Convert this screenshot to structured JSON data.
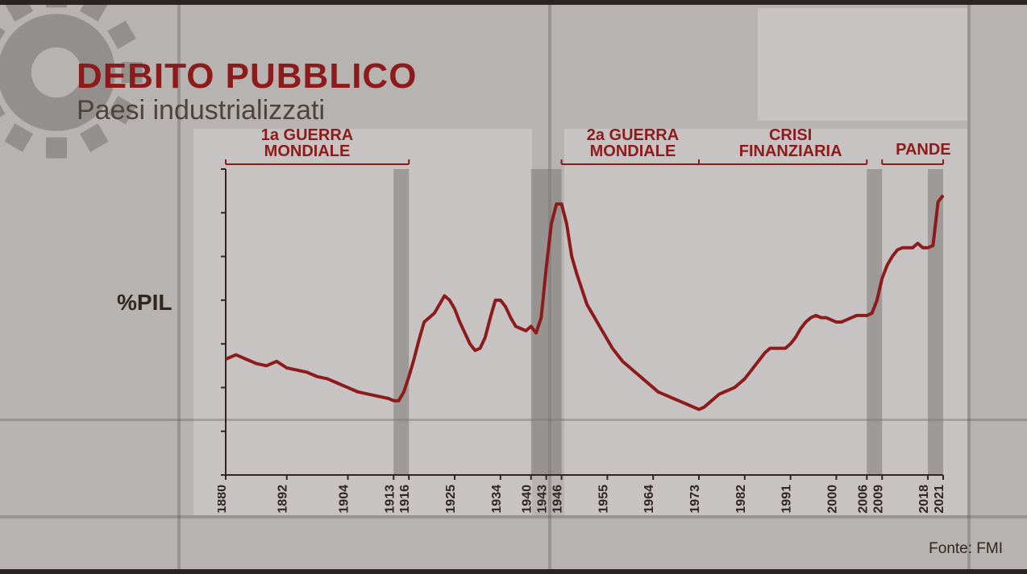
{
  "header": {
    "title": "DEBITO PUBBLICO",
    "subtitle": "Paesi industrializzati"
  },
  "footer": {
    "source": "Fonte: FMI"
  },
  "chart": {
    "type": "line",
    "ylabel": "%PIL",
    "plot_background": "rgba(255,255,255,0.0)",
    "line_color": "#8e1b1b",
    "line_width": 4,
    "axis_color": "#2d2623",
    "axis_width": 2,
    "tick_font_size": 16,
    "tick_font_weight": 600,
    "tick_color": "#2d2623",
    "grid_color": "#9d9793",
    "grid_width": 1,
    "annotation_color": "#8e1b1b",
    "annotation_font_size": 20,
    "annotation_font_weight": 800,
    "band_color": "#7d7976",
    "band_opacity": 0.55,
    "xlim": [
      1880,
      2021
    ],
    "ylim": [
      0,
      140
    ],
    "ytick_step": 20,
    "xtick_years": [
      1880,
      1892,
      1904,
      1913,
      1916,
      1925,
      1934,
      1940,
      1943,
      1946,
      1955,
      1964,
      1973,
      1982,
      1991,
      2000,
      2006,
      2009,
      2018,
      2021
    ],
    "series": [
      {
        "x": 1880,
        "y": 53
      },
      {
        "x": 1882,
        "y": 55
      },
      {
        "x": 1884,
        "y": 53
      },
      {
        "x": 1886,
        "y": 51
      },
      {
        "x": 1888,
        "y": 50
      },
      {
        "x": 1890,
        "y": 52
      },
      {
        "x": 1892,
        "y": 49
      },
      {
        "x": 1894,
        "y": 48
      },
      {
        "x": 1896,
        "y": 47
      },
      {
        "x": 1898,
        "y": 45
      },
      {
        "x": 1900,
        "y": 44
      },
      {
        "x": 1902,
        "y": 42
      },
      {
        "x": 1904,
        "y": 40
      },
      {
        "x": 1906,
        "y": 38
      },
      {
        "x": 1908,
        "y": 37
      },
      {
        "x": 1910,
        "y": 36
      },
      {
        "x": 1912,
        "y": 35
      },
      {
        "x": 1913,
        "y": 34
      },
      {
        "x": 1914,
        "y": 34
      },
      {
        "x": 1915,
        "y": 38
      },
      {
        "x": 1916,
        "y": 45
      },
      {
        "x": 1917,
        "y": 53
      },
      {
        "x": 1918,
        "y": 62
      },
      {
        "x": 1919,
        "y": 70
      },
      {
        "x": 1920,
        "y": 72
      },
      {
        "x": 1921,
        "y": 74
      },
      {
        "x": 1922,
        "y": 78
      },
      {
        "x": 1923,
        "y": 82
      },
      {
        "x": 1924,
        "y": 80
      },
      {
        "x": 1925,
        "y": 76
      },
      {
        "x": 1926,
        "y": 70
      },
      {
        "x": 1927,
        "y": 65
      },
      {
        "x": 1928,
        "y": 60
      },
      {
        "x": 1929,
        "y": 57
      },
      {
        "x": 1930,
        "y": 58
      },
      {
        "x": 1931,
        "y": 63
      },
      {
        "x": 1932,
        "y": 72
      },
      {
        "x": 1933,
        "y": 80
      },
      {
        "x": 1934,
        "y": 80
      },
      {
        "x": 1935,
        "y": 77
      },
      {
        "x": 1936,
        "y": 72
      },
      {
        "x": 1937,
        "y": 68
      },
      {
        "x": 1938,
        "y": 67
      },
      {
        "x": 1939,
        "y": 66
      },
      {
        "x": 1940,
        "y": 68
      },
      {
        "x": 1941,
        "y": 65
      },
      {
        "x": 1942,
        "y": 72
      },
      {
        "x": 1943,
        "y": 95
      },
      {
        "x": 1944,
        "y": 115
      },
      {
        "x": 1945,
        "y": 124
      },
      {
        "x": 1946,
        "y": 124
      },
      {
        "x": 1947,
        "y": 115
      },
      {
        "x": 1948,
        "y": 100
      },
      {
        "x": 1949,
        "y": 92
      },
      {
        "x": 1950,
        "y": 85
      },
      {
        "x": 1951,
        "y": 78
      },
      {
        "x": 1952,
        "y": 74
      },
      {
        "x": 1953,
        "y": 70
      },
      {
        "x": 1954,
        "y": 66
      },
      {
        "x": 1955,
        "y": 62
      },
      {
        "x": 1956,
        "y": 58
      },
      {
        "x": 1957,
        "y": 55
      },
      {
        "x": 1958,
        "y": 52
      },
      {
        "x": 1959,
        "y": 50
      },
      {
        "x": 1960,
        "y": 48
      },
      {
        "x": 1961,
        "y": 46
      },
      {
        "x": 1962,
        "y": 44
      },
      {
        "x": 1963,
        "y": 42
      },
      {
        "x": 1964,
        "y": 40
      },
      {
        "x": 1965,
        "y": 38
      },
      {
        "x": 1966,
        "y": 37
      },
      {
        "x": 1967,
        "y": 36
      },
      {
        "x": 1968,
        "y": 35
      },
      {
        "x": 1969,
        "y": 34
      },
      {
        "x": 1970,
        "y": 33
      },
      {
        "x": 1971,
        "y": 32
      },
      {
        "x": 1972,
        "y": 31
      },
      {
        "x": 1973,
        "y": 30
      },
      {
        "x": 1974,
        "y": 31
      },
      {
        "x": 1975,
        "y": 33
      },
      {
        "x": 1976,
        "y": 35
      },
      {
        "x": 1977,
        "y": 37
      },
      {
        "x": 1978,
        "y": 38
      },
      {
        "x": 1979,
        "y": 39
      },
      {
        "x": 1980,
        "y": 40
      },
      {
        "x": 1981,
        "y": 42
      },
      {
        "x": 1982,
        "y": 44
      },
      {
        "x": 1983,
        "y": 47
      },
      {
        "x": 1984,
        "y": 50
      },
      {
        "x": 1985,
        "y": 53
      },
      {
        "x": 1986,
        "y": 56
      },
      {
        "x": 1987,
        "y": 58
      },
      {
        "x": 1988,
        "y": 58
      },
      {
        "x": 1989,
        "y": 58
      },
      {
        "x": 1990,
        "y": 58
      },
      {
        "x": 1991,
        "y": 60
      },
      {
        "x": 1992,
        "y": 63
      },
      {
        "x": 1993,
        "y": 67
      },
      {
        "x": 1994,
        "y": 70
      },
      {
        "x": 1995,
        "y": 72
      },
      {
        "x": 1996,
        "y": 73
      },
      {
        "x": 1997,
        "y": 72
      },
      {
        "x": 1998,
        "y": 72
      },
      {
        "x": 1999,
        "y": 71
      },
      {
        "x": 2000,
        "y": 70
      },
      {
        "x": 2001,
        "y": 70
      },
      {
        "x": 2002,
        "y": 71
      },
      {
        "x": 2003,
        "y": 72
      },
      {
        "x": 2004,
        "y": 73
      },
      {
        "x": 2005,
        "y": 73
      },
      {
        "x": 2006,
        "y": 73
      },
      {
        "x": 2007,
        "y": 74
      },
      {
        "x": 2008,
        "y": 80
      },
      {
        "x": 2009,
        "y": 90
      },
      {
        "x": 2010,
        "y": 96
      },
      {
        "x": 2011,
        "y": 100
      },
      {
        "x": 2012,
        "y": 103
      },
      {
        "x": 2013,
        "y": 104
      },
      {
        "x": 2014,
        "y": 104
      },
      {
        "x": 2015,
        "y": 104
      },
      {
        "x": 2016,
        "y": 106
      },
      {
        "x": 2017,
        "y": 104
      },
      {
        "x": 2018,
        "y": 104
      },
      {
        "x": 2019,
        "y": 105
      },
      {
        "x": 2020,
        "y": 125
      },
      {
        "x": 2021,
        "y": 128
      }
    ],
    "event_bands": [
      {
        "from": 1913,
        "to": 1916
      },
      {
        "from": 1940,
        "to": 1946
      },
      {
        "from": 2006,
        "to": 2009
      },
      {
        "from": 2018,
        "to": 2021
      }
    ],
    "annotations": [
      {
        "label_lines": [
          "1a GUERRA",
          "MONDIALE"
        ],
        "x_label": 1896,
        "span": [
          1880,
          1916
        ]
      },
      {
        "label_lines": [
          "2a GUERRA",
          "MONDIALE"
        ],
        "x_label": 1960,
        "span": [
          1946,
          1973
        ]
      },
      {
        "label_lines": [
          "CRISI",
          "FINANZIARIA"
        ],
        "x_label": 1991,
        "span": [
          1973,
          2006
        ]
      },
      {
        "label_lines": [
          "PANDEMIA"
        ],
        "x_label": 2020,
        "span": [
          2009,
          2021
        ],
        "single_line": true
      }
    ]
  }
}
